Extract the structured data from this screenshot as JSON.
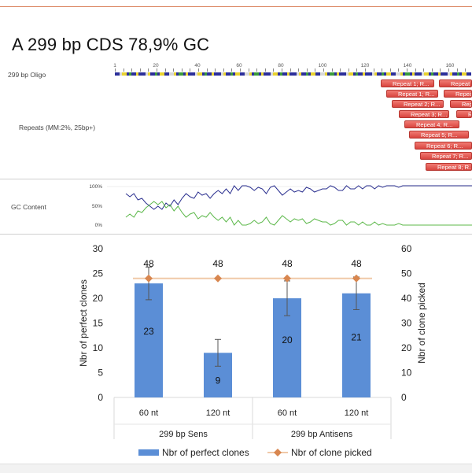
{
  "header": {
    "title": "A 299 bp CDS 78,9% GC"
  },
  "tracks": {
    "oligo_label": "299 bp Oligo",
    "repeats_label": "Repeats (MM:2%, 25bp+)",
    "gc_label": "GC Content",
    "ruler": [
      "1",
      "20",
      "40",
      "60",
      "80",
      "100",
      "120",
      "140",
      "160"
    ],
    "gc_ticks": [
      "100%",
      "50%",
      "0%"
    ],
    "repeats": [
      "Repeat 1; R...",
      "Repeat 9;",
      "Repeat 1; R...",
      "Repeat",
      "Repeat 2; R...",
      "Repeat",
      "Repeat 3; R...",
      "Repe",
      "Repeat 4; R...",
      "Repeat 5; R...",
      "Repeat 6; R...",
      "Repeat 7; R...",
      "Repeat 8; R..."
    ]
  },
  "colors": {
    "bar": "#5b8ed6",
    "line": "#f0c9a8",
    "marker": "#d8864f",
    "gc_high": "#2a2f8f",
    "gc_low": "#5cb84a"
  },
  "chart_data": {
    "type": "bar",
    "categories": [
      "60 nt",
      "120 nt",
      "60 nt",
      "120 nt"
    ],
    "groups": [
      "299 bp Sens",
      "299 bp Antisens"
    ],
    "series": [
      {
        "name": "Nbr of perfect clones",
        "axis": "left",
        "type": "bar",
        "values": [
          23,
          9,
          20,
          21
        ],
        "error": [
          3.3,
          2.7,
          3.5,
          3.3
        ]
      },
      {
        "name": "Nbr of clone picked",
        "axis": "right",
        "type": "line",
        "values": [
          48,
          48,
          48,
          48
        ]
      }
    ],
    "ylabel": "Nbr of perfect clones",
    "y2label": "Nbr of clone picked",
    "ylim": [
      0,
      30
    ],
    "y2lim": [
      0,
      60
    ],
    "yticks": [
      "0",
      "5",
      "10",
      "15",
      "20",
      "25",
      "30"
    ],
    "y2ticks": [
      "0",
      "10",
      "20",
      "30",
      "40",
      "50",
      "60"
    ],
    "bar_labels": [
      "23",
      "9",
      "20",
      "21"
    ],
    "line_labels": [
      "48",
      "48",
      "48",
      "48"
    ],
    "legend": [
      "Nbr of perfect clones",
      "Nbr of clone picked"
    ]
  }
}
